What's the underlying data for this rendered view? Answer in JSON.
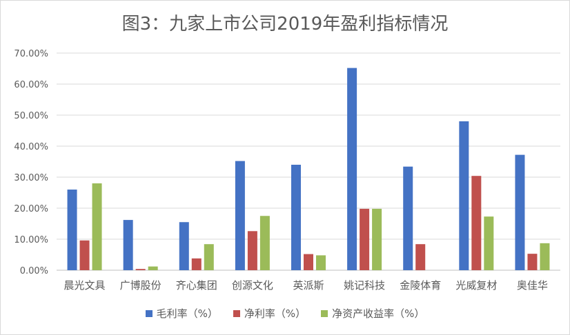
{
  "chart_data": {
    "type": "bar",
    "title": "图3：九家上市公司2019年盈利指标情况",
    "categories": [
      "晨光文具",
      "广博股份",
      "齐心集团",
      "创源文化",
      "英派斯",
      "姚记科技",
      "金陵体育",
      "光威复材",
      "奥佳华"
    ],
    "series": [
      {
        "name": "毛利率（%）",
        "color": "#4472C4",
        "values": [
          26.0,
          16.2,
          15.5,
          35.2,
          34.0,
          65.2,
          33.4,
          48.0,
          37.2
        ]
      },
      {
        "name": "净利率（%）",
        "color": "#C0504D",
        "values": [
          9.6,
          0.4,
          3.8,
          12.6,
          5.2,
          19.8,
          8.4,
          30.4,
          5.3
        ]
      },
      {
        "name": "净资产收益率（%）",
        "color": "#9BBB59",
        "values": [
          28.0,
          1.2,
          8.4,
          17.5,
          4.8,
          19.8,
          0.0,
          17.3,
          8.7
        ]
      }
    ],
    "yticks": [
      "0.00%",
      "10.00%",
      "20.00%",
      "30.00%",
      "40.00%",
      "50.00%",
      "60.00%",
      "70.00%"
    ],
    "ylim": [
      0,
      70
    ],
    "grid": true,
    "legend_position": "bottom"
  }
}
